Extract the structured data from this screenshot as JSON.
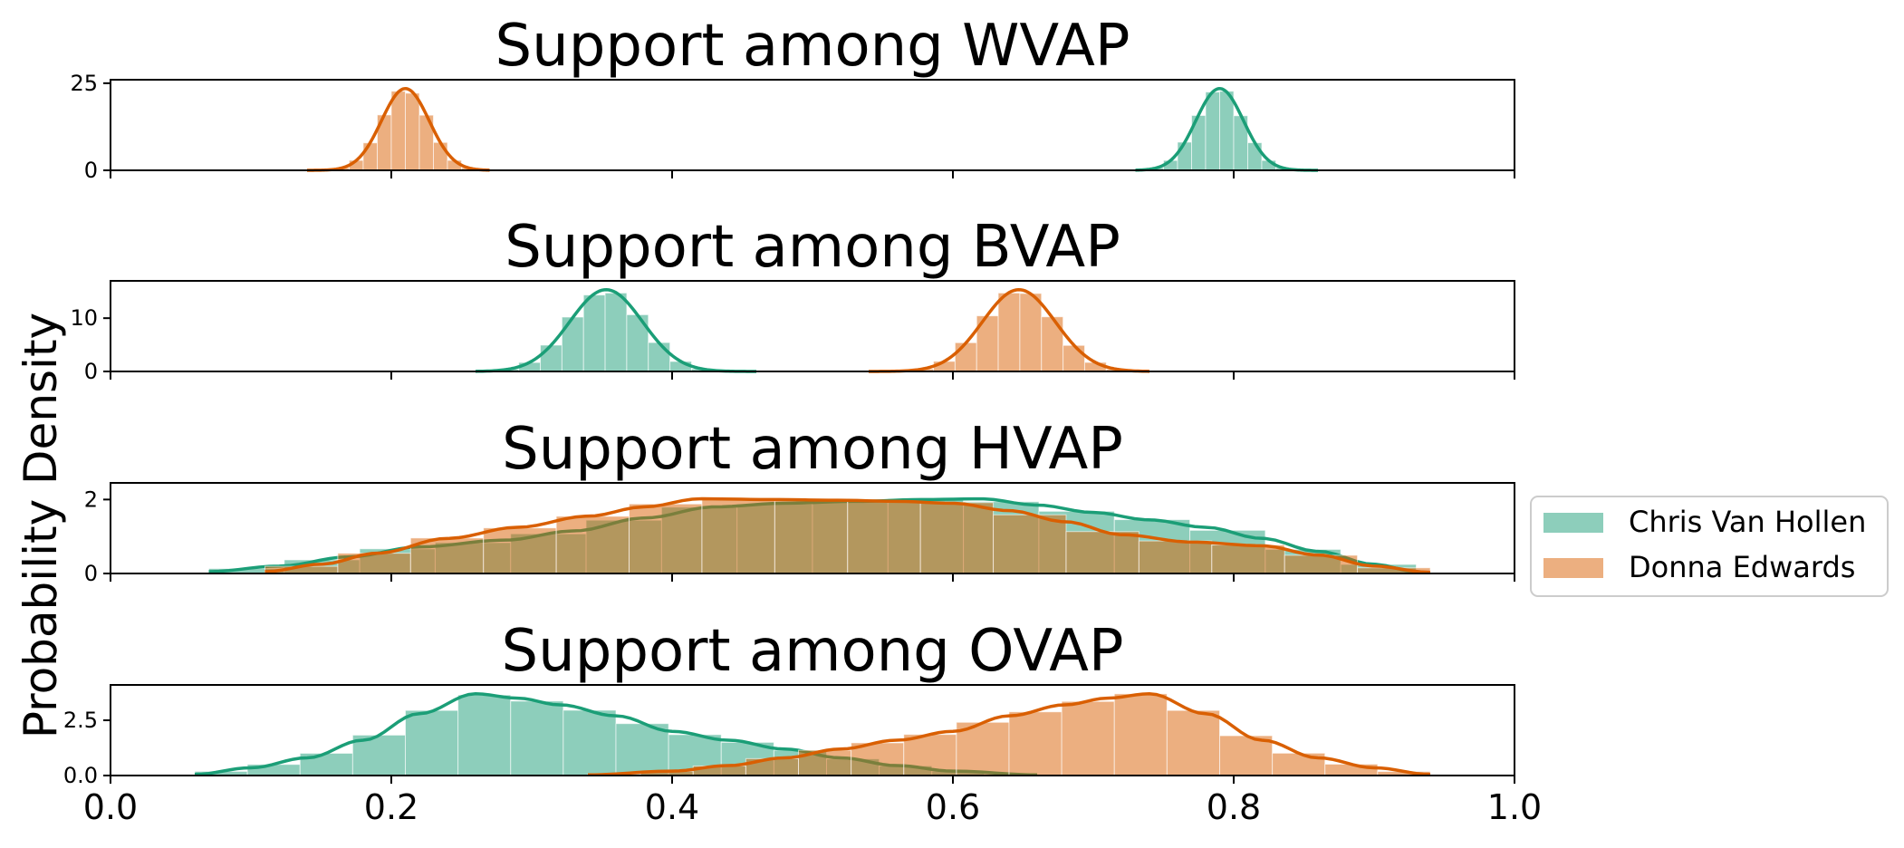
{
  "chart_data": {
    "type": "area",
    "ylabel": "Probability Density",
    "xlim": [
      0.0,
      1.0
    ],
    "x_ticks": [
      "0.0",
      "0.2",
      "0.4",
      "0.6",
      "0.8",
      "1.0"
    ],
    "colors": {
      "Chris Van Hollen": "#1b9e77",
      "Donna Edwards": "#d95f02"
    },
    "legend": {
      "placement": "center-right",
      "entries": [
        "Chris Van Hollen",
        "Donna Edwards"
      ]
    },
    "panels": [
      {
        "title": "Support among WVAP",
        "ylim": [
          0,
          26
        ],
        "y_ticks": [
          {
            "value": 0,
            "label": "0"
          },
          {
            "value": 25,
            "label": "25"
          }
        ],
        "series": [
          {
            "name": "Chris Van Hollen",
            "type": "normal",
            "mean": 0.79,
            "sd": 0.017,
            "support": [
              0.73,
              0.86
            ]
          },
          {
            "name": "Donna Edwards",
            "type": "normal",
            "mean": 0.21,
            "sd": 0.017,
            "support": [
              0.14,
              0.27
            ]
          }
        ]
      },
      {
        "title": "Support among BVAP",
        "ylim": [
          0,
          17
        ],
        "y_ticks": [
          {
            "value": 0,
            "label": "0"
          },
          {
            "value": 10,
            "label": "10"
          }
        ],
        "series": [
          {
            "name": "Chris Van Hollen",
            "type": "normal",
            "mean": 0.353,
            "sd": 0.026,
            "support": [
              0.26,
              0.46
            ]
          },
          {
            "name": "Donna Edwards",
            "type": "normal",
            "mean": 0.647,
            "sd": 0.026,
            "support": [
              0.54,
              0.74
            ]
          }
        ]
      },
      {
        "title": "Support among HVAP",
        "ylim": [
          0,
          2.45
        ],
        "y_ticks": [
          {
            "value": 0,
            "label": "0"
          },
          {
            "value": 2,
            "label": "2"
          }
        ],
        "series": [
          {
            "name": "Chris Van Hollen",
            "type": "curve",
            "points": [
              [
                0.07,
                0.05
              ],
              [
                0.12,
                0.2
              ],
              [
                0.17,
                0.45
              ],
              [
                0.22,
                0.72
              ],
              [
                0.28,
                0.9
              ],
              [
                0.33,
                1.15
              ],
              [
                0.38,
                1.5
              ],
              [
                0.43,
                1.8
              ],
              [
                0.48,
                1.9
              ],
              [
                0.53,
                1.95
              ],
              [
                0.58,
                2.0
              ],
              [
                0.62,
                2.02
              ],
              [
                0.66,
                1.85
              ],
              [
                0.7,
                1.65
              ],
              [
                0.74,
                1.45
              ],
              [
                0.78,
                1.25
              ],
              [
                0.82,
                0.95
              ],
              [
                0.86,
                0.6
              ],
              [
                0.9,
                0.25
              ],
              [
                0.93,
                0.05
              ]
            ]
          },
          {
            "name": "Donna Edwards",
            "type": "curve",
            "points": [
              [
                0.11,
                0.05
              ],
              [
                0.15,
                0.25
              ],
              [
                0.19,
                0.55
              ],
              [
                0.24,
                0.95
              ],
              [
                0.29,
                1.25
              ],
              [
                0.34,
                1.55
              ],
              [
                0.38,
                1.8
              ],
              [
                0.42,
                2.02
              ],
              [
                0.47,
                2.0
              ],
              [
                0.52,
                1.98
              ],
              [
                0.56,
                1.95
              ],
              [
                0.6,
                1.9
              ],
              [
                0.64,
                1.7
              ],
              [
                0.68,
                1.4
              ],
              [
                0.72,
                1.05
              ],
              [
                0.77,
                0.85
              ],
              [
                0.82,
                0.75
              ],
              [
                0.86,
                0.5
              ],
              [
                0.9,
                0.2
              ],
              [
                0.94,
                0.03
              ]
            ]
          }
        ]
      },
      {
        "title": "Support among OVAP",
        "ylim": [
          0,
          4.1
        ],
        "y_ticks": [
          {
            "value": 0,
            "label": "0.0"
          },
          {
            "value": 2.5,
            "label": "2.5"
          }
        ],
        "series": [
          {
            "name": "Chris Van Hollen",
            "type": "curve",
            "points": [
              [
                0.06,
                0.05
              ],
              [
                0.1,
                0.35
              ],
              [
                0.14,
                0.8
              ],
              [
                0.18,
                1.6
              ],
              [
                0.22,
                2.8
              ],
              [
                0.26,
                3.7
              ],
              [
                0.29,
                3.5
              ],
              [
                0.32,
                3.2
              ],
              [
                0.36,
                2.7
              ],
              [
                0.4,
                2.0
              ],
              [
                0.44,
                1.6
              ],
              [
                0.48,
                1.2
              ],
              [
                0.52,
                0.8
              ],
              [
                0.56,
                0.45
              ],
              [
                0.6,
                0.2
              ],
              [
                0.66,
                0.03
              ]
            ]
          },
          {
            "name": "Donna Edwards",
            "type": "curve",
            "points": [
              [
                0.34,
                0.03
              ],
              [
                0.4,
                0.2
              ],
              [
                0.44,
                0.45
              ],
              [
                0.48,
                0.8
              ],
              [
                0.52,
                1.2
              ],
              [
                0.56,
                1.6
              ],
              [
                0.6,
                2.0
              ],
              [
                0.64,
                2.7
              ],
              [
                0.68,
                3.2
              ],
              [
                0.71,
                3.5
              ],
              [
                0.74,
                3.7
              ],
              [
                0.78,
                2.8
              ],
              [
                0.82,
                1.6
              ],
              [
                0.86,
                0.8
              ],
              [
                0.9,
                0.35
              ],
              [
                0.94,
                0.05
              ]
            ]
          }
        ]
      }
    ]
  }
}
